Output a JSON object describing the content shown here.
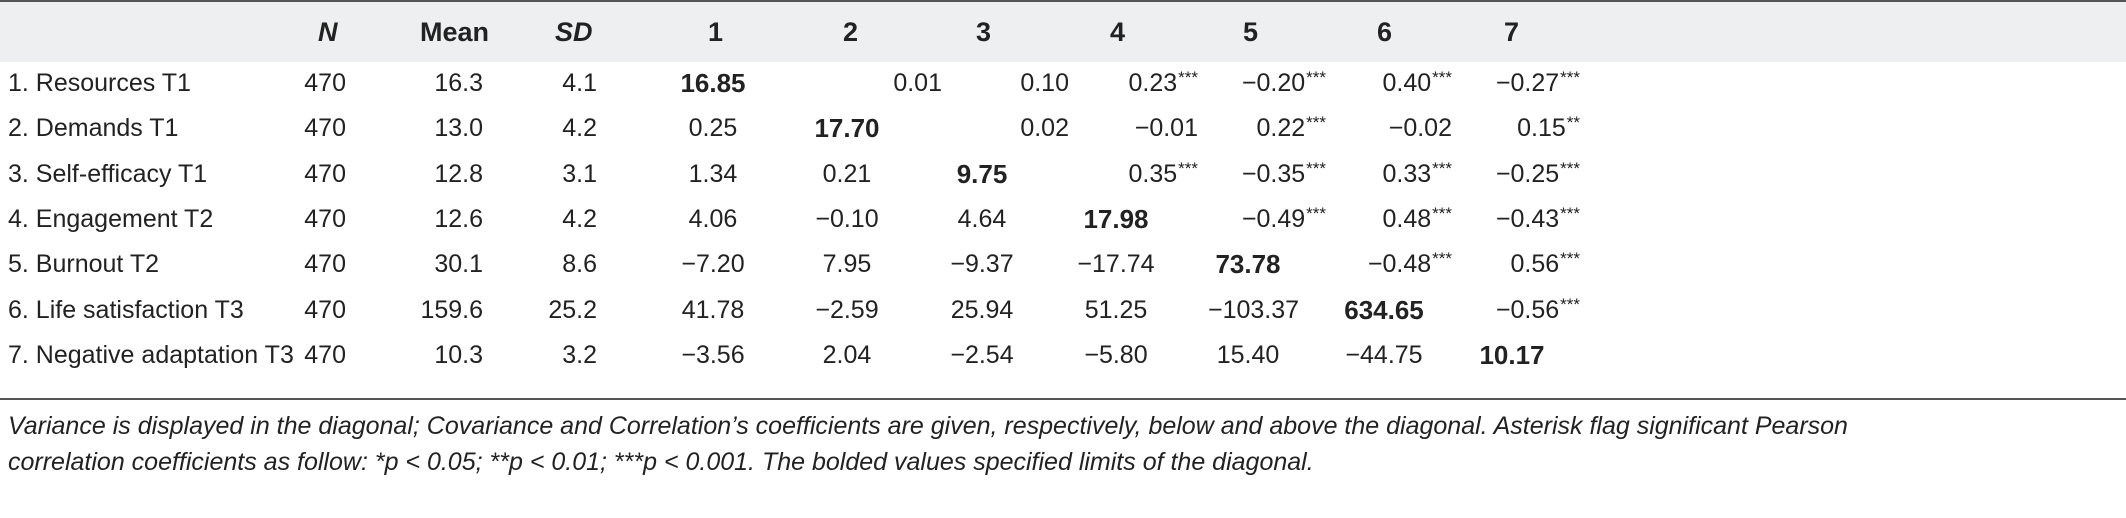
{
  "table": {
    "headers": [
      "",
      "N",
      "Mean",
      "SD",
      "1",
      "2",
      "3",
      "4",
      "5",
      "6",
      "7"
    ],
    "rows": [
      {
        "label": "1. Resources T1",
        "n": "470",
        "mean": "16.3",
        "sd": "4.1",
        "values": [
          {
            "v": "16.85",
            "sig": "",
            "bold": true
          },
          {
            "v": "0.01",
            "sig": "",
            "bold": false
          },
          {
            "v": "0.10",
            "sig": "",
            "bold": false
          },
          {
            "v": "0.23",
            "sig": "***",
            "bold": false
          },
          {
            "v": "−0.20",
            "sig": "***",
            "bold": false
          },
          {
            "v": "0.40",
            "sig": "***",
            "bold": false
          },
          {
            "v": "−0.27",
            "sig": "***",
            "bold": false
          }
        ]
      },
      {
        "label": "2. Demands T1",
        "n": "470",
        "mean": "13.0",
        "sd": "4.2",
        "values": [
          {
            "v": "0.25",
            "sig": "",
            "bold": false
          },
          {
            "v": "17.70",
            "sig": "",
            "bold": true
          },
          {
            "v": "0.02",
            "sig": "",
            "bold": false
          },
          {
            "v": "−0.01",
            "sig": "",
            "bold": false
          },
          {
            "v": "0.22",
            "sig": "***",
            "bold": false
          },
          {
            "v": "−0.02",
            "sig": "",
            "bold": false
          },
          {
            "v": "0.15",
            "sig": "**",
            "bold": false
          }
        ]
      },
      {
        "label": "3. Self-efficacy T1",
        "n": "470",
        "mean": "12.8",
        "sd": "3.1",
        "values": [
          {
            "v": "1.34",
            "sig": "",
            "bold": false
          },
          {
            "v": "0.21",
            "sig": "",
            "bold": false
          },
          {
            "v": "9.75",
            "sig": "",
            "bold": true
          },
          {
            "v": "0.35",
            "sig": "***",
            "bold": false
          },
          {
            "v": "−0.35",
            "sig": "***",
            "bold": false
          },
          {
            "v": "0.33",
            "sig": "***",
            "bold": false
          },
          {
            "v": "−0.25",
            "sig": "***",
            "bold": false
          }
        ]
      },
      {
        "label": "4. Engagement T2",
        "n": "470",
        "mean": "12.6",
        "sd": "4.2",
        "values": [
          {
            "v": "4.06",
            "sig": "",
            "bold": false
          },
          {
            "v": "−0.10",
            "sig": "",
            "bold": false
          },
          {
            "v": "4.64",
            "sig": "",
            "bold": false
          },
          {
            "v": "17.98",
            "sig": "",
            "bold": true
          },
          {
            "v": "−0.49",
            "sig": "***",
            "bold": false
          },
          {
            "v": "0.48",
            "sig": "***",
            "bold": false
          },
          {
            "v": "−0.43",
            "sig": "***",
            "bold": false
          }
        ]
      },
      {
        "label": "5. Burnout T2",
        "n": "470",
        "mean": "30.1",
        "sd": "8.6",
        "values": [
          {
            "v": "−7.20",
            "sig": "",
            "bold": false
          },
          {
            "v": "7.95",
            "sig": "",
            "bold": false
          },
          {
            "v": "−9.37",
            "sig": "",
            "bold": false
          },
          {
            "v": "−17.74",
            "sig": "",
            "bold": false
          },
          {
            "v": "73.78",
            "sig": "",
            "bold": true
          },
          {
            "v": "−0.48",
            "sig": "***",
            "bold": false
          },
          {
            "v": "0.56",
            "sig": "***",
            "bold": false
          }
        ]
      },
      {
        "label": "6. Life satisfaction T3",
        "n": "470",
        "mean": "159.6",
        "sd": "25.2",
        "values": [
          {
            "v": "41.78",
            "sig": "",
            "bold": false
          },
          {
            "v": "−2.59",
            "sig": "",
            "bold": false
          },
          {
            "v": "25.94",
            "sig": "",
            "bold": false
          },
          {
            "v": "51.25",
            "sig": "",
            "bold": false
          },
          {
            "v": "−103.37",
            "sig": "",
            "bold": false
          },
          {
            "v": "634.65",
            "sig": "",
            "bold": true
          },
          {
            "v": "−0.56",
            "sig": "***",
            "bold": false
          }
        ]
      },
      {
        "label": "7. Negative adaptation T3",
        "n": "470",
        "mean": "10.3",
        "sd": "3.2",
        "values": [
          {
            "v": "−3.56",
            "sig": "",
            "bold": false
          },
          {
            "v": "2.04",
            "sig": "",
            "bold": false
          },
          {
            "v": "−2.54",
            "sig": "",
            "bold": false
          },
          {
            "v": "−5.80",
            "sig": "",
            "bold": false
          },
          {
            "v": "15.40",
            "sig": "",
            "bold": false
          },
          {
            "v": "−44.75",
            "sig": "",
            "bold": false
          },
          {
            "v": "10.17",
            "sig": "",
            "bold": true
          }
        ]
      }
    ]
  },
  "note": {
    "line1": "Variance is displayed in the diagonal; Covariance and Correlation’s coefficients are given, respectively, below and above the diagonal. Asterisk flag significant Pearson",
    "line2": "correlation coefficients as follow: *p < 0.05; **p < 0.01; ***p < 0.001. The bolded values specified limits of the diagonal."
  }
}
